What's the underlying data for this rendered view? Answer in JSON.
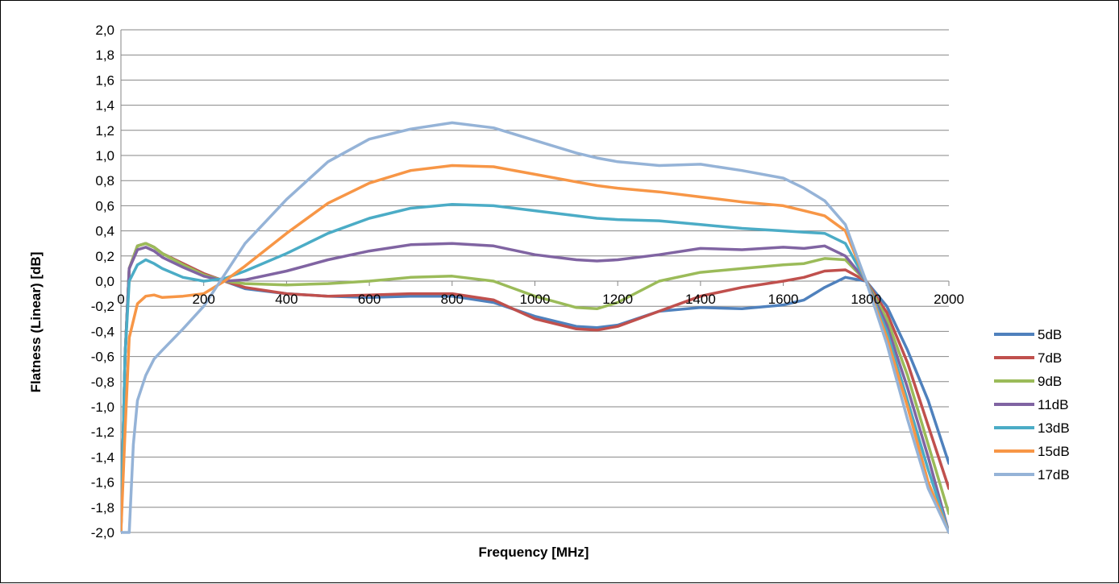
{
  "chart_data": {
    "type": "line",
    "title": "",
    "xlabel": "Frequency [MHz]",
    "ylabel": "Flatness (Linear) [dB]",
    "xlim": [
      0,
      2000
    ],
    "ylim": [
      -2.0,
      2.0
    ],
    "x_ticks": [
      "0",
      "200",
      "400",
      "600",
      "800",
      "1000",
      "1200",
      "1400",
      "1600",
      "1800",
      "2000"
    ],
    "y_ticks": [
      "2,0",
      "1,8",
      "1,6",
      "1,4",
      "1,2",
      "1,0",
      "0,8",
      "0,6",
      "0,4",
      "0,2",
      "0,0",
      "-0,2",
      "-0,4",
      "-0,6",
      "-0,8",
      "-1,0",
      "-1,2",
      "-1,4",
      "-1,6",
      "-1,8",
      "-2,0"
    ],
    "grid": "horizontal",
    "legend_position": "right",
    "series": [
      {
        "name": "5dB",
        "color": "#4f81bd",
        "x": [
          0,
          10,
          20,
          40,
          60,
          80,
          100,
          150,
          200,
          250,
          300,
          400,
          500,
          600,
          700,
          800,
          900,
          1000,
          1100,
          1150,
          1200,
          1300,
          1400,
          1500,
          1600,
          1650,
          1700,
          1750,
          1800,
          1850,
          1900,
          1950,
          2000
        ],
        "y": [
          -2.0,
          -0.6,
          0.1,
          0.28,
          0.3,
          0.27,
          0.22,
          0.14,
          0.06,
          0.0,
          -0.06,
          -0.1,
          -0.12,
          -0.13,
          -0.12,
          -0.12,
          -0.17,
          -0.28,
          -0.36,
          -0.37,
          -0.35,
          -0.24,
          -0.21,
          -0.22,
          -0.19,
          -0.15,
          -0.05,
          0.03,
          0.0,
          -0.2,
          -0.55,
          -0.95,
          -1.45
        ]
      },
      {
        "name": "7dB",
        "color": "#c0504d",
        "x": [
          0,
          10,
          20,
          40,
          60,
          80,
          100,
          150,
          200,
          250,
          300,
          400,
          500,
          600,
          700,
          800,
          900,
          1000,
          1100,
          1150,
          1200,
          1300,
          1400,
          1500,
          1600,
          1650,
          1700,
          1750,
          1800,
          1850,
          1900,
          1950,
          2000
        ],
        "y": [
          -2.0,
          -0.6,
          0.1,
          0.28,
          0.3,
          0.27,
          0.22,
          0.14,
          0.06,
          0.0,
          -0.05,
          -0.1,
          -0.12,
          -0.11,
          -0.1,
          -0.1,
          -0.15,
          -0.3,
          -0.38,
          -0.39,
          -0.36,
          -0.24,
          -0.12,
          -0.05,
          0.0,
          0.03,
          0.08,
          0.09,
          0.0,
          -0.25,
          -0.65,
          -1.15,
          -1.65
        ]
      },
      {
        "name": "9dB",
        "color": "#9bbb59",
        "x": [
          0,
          10,
          20,
          40,
          60,
          80,
          100,
          150,
          200,
          250,
          300,
          400,
          500,
          600,
          700,
          800,
          900,
          1000,
          1100,
          1150,
          1200,
          1300,
          1400,
          1500,
          1600,
          1650,
          1700,
          1750,
          1800,
          1850,
          1900,
          1950,
          2000
        ],
        "y": [
          -2.0,
          -0.6,
          0.1,
          0.28,
          0.3,
          0.27,
          0.22,
          0.13,
          0.05,
          0.0,
          -0.02,
          -0.03,
          -0.02,
          0.0,
          0.03,
          0.04,
          0.0,
          -0.12,
          -0.21,
          -0.22,
          -0.17,
          0.0,
          0.07,
          0.1,
          0.13,
          0.14,
          0.18,
          0.17,
          0.0,
          -0.3,
          -0.75,
          -1.3,
          -1.85
        ]
      },
      {
        "name": "11dB",
        "color": "#8064a2",
        "x": [
          0,
          10,
          20,
          40,
          60,
          80,
          100,
          150,
          200,
          250,
          300,
          400,
          500,
          600,
          700,
          800,
          900,
          1000,
          1100,
          1150,
          1200,
          1300,
          1400,
          1500,
          1600,
          1650,
          1700,
          1750,
          1800,
          1850,
          1900,
          1950,
          2000
        ],
        "y": [
          -2.0,
          -0.6,
          0.1,
          0.25,
          0.27,
          0.24,
          0.19,
          0.11,
          0.04,
          0.0,
          0.01,
          0.08,
          0.17,
          0.24,
          0.29,
          0.3,
          0.28,
          0.21,
          0.17,
          0.16,
          0.17,
          0.21,
          0.26,
          0.25,
          0.27,
          0.26,
          0.28,
          0.2,
          0.0,
          -0.35,
          -0.85,
          -1.4,
          -2.0
        ]
      },
      {
        "name": "13dB",
        "color": "#4bacc6",
        "x": [
          0,
          10,
          20,
          40,
          60,
          80,
          100,
          150,
          200,
          250,
          300,
          400,
          500,
          600,
          700,
          800,
          900,
          1000,
          1100,
          1150,
          1200,
          1300,
          1400,
          1500,
          1600,
          1650,
          1700,
          1750,
          1800,
          1850,
          1900,
          1950,
          2000
        ],
        "y": [
          -2.0,
          -0.6,
          0.0,
          0.13,
          0.17,
          0.14,
          0.1,
          0.03,
          0.0,
          0.02,
          0.08,
          0.22,
          0.38,
          0.5,
          0.58,
          0.61,
          0.6,
          0.56,
          0.52,
          0.5,
          0.49,
          0.48,
          0.45,
          0.42,
          0.4,
          0.39,
          0.38,
          0.3,
          0.0,
          -0.4,
          -0.95,
          -1.5,
          -2.0
        ]
      },
      {
        "name": "15dB",
        "color": "#f79646",
        "x": [
          0,
          10,
          20,
          40,
          60,
          80,
          100,
          150,
          200,
          250,
          300,
          400,
          500,
          600,
          700,
          800,
          900,
          1000,
          1100,
          1150,
          1200,
          1300,
          1400,
          1500,
          1600,
          1650,
          1700,
          1750,
          1800,
          1850,
          1900,
          1950,
          2000
        ],
        "y": [
          -2.0,
          -1.2,
          -0.45,
          -0.18,
          -0.12,
          -0.11,
          -0.13,
          -0.12,
          -0.1,
          0.0,
          0.12,
          0.38,
          0.62,
          0.78,
          0.88,
          0.92,
          0.91,
          0.85,
          0.79,
          0.76,
          0.74,
          0.71,
          0.67,
          0.63,
          0.6,
          0.56,
          0.52,
          0.4,
          0.0,
          -0.45,
          -1.0,
          -1.6,
          -2.0
        ]
      },
      {
        "name": "17dB",
        "color": "#95b3d7",
        "x": [
          0,
          20,
          30,
          40,
          60,
          80,
          100,
          150,
          200,
          250,
          300,
          400,
          500,
          600,
          700,
          800,
          900,
          1000,
          1100,
          1150,
          1200,
          1300,
          1400,
          1500,
          1600,
          1650,
          1700,
          1750,
          1800,
          1850,
          1900,
          1950,
          2000
        ],
        "y": [
          -2.0,
          -2.0,
          -1.3,
          -0.95,
          -0.75,
          -0.62,
          -0.55,
          -0.38,
          -0.2,
          0.05,
          0.3,
          0.65,
          0.95,
          1.13,
          1.21,
          1.26,
          1.22,
          1.12,
          1.02,
          0.98,
          0.95,
          0.92,
          0.93,
          0.88,
          0.82,
          0.74,
          0.64,
          0.45,
          0.0,
          -0.5,
          -1.1,
          -1.65,
          -2.0
        ]
      }
    ]
  }
}
